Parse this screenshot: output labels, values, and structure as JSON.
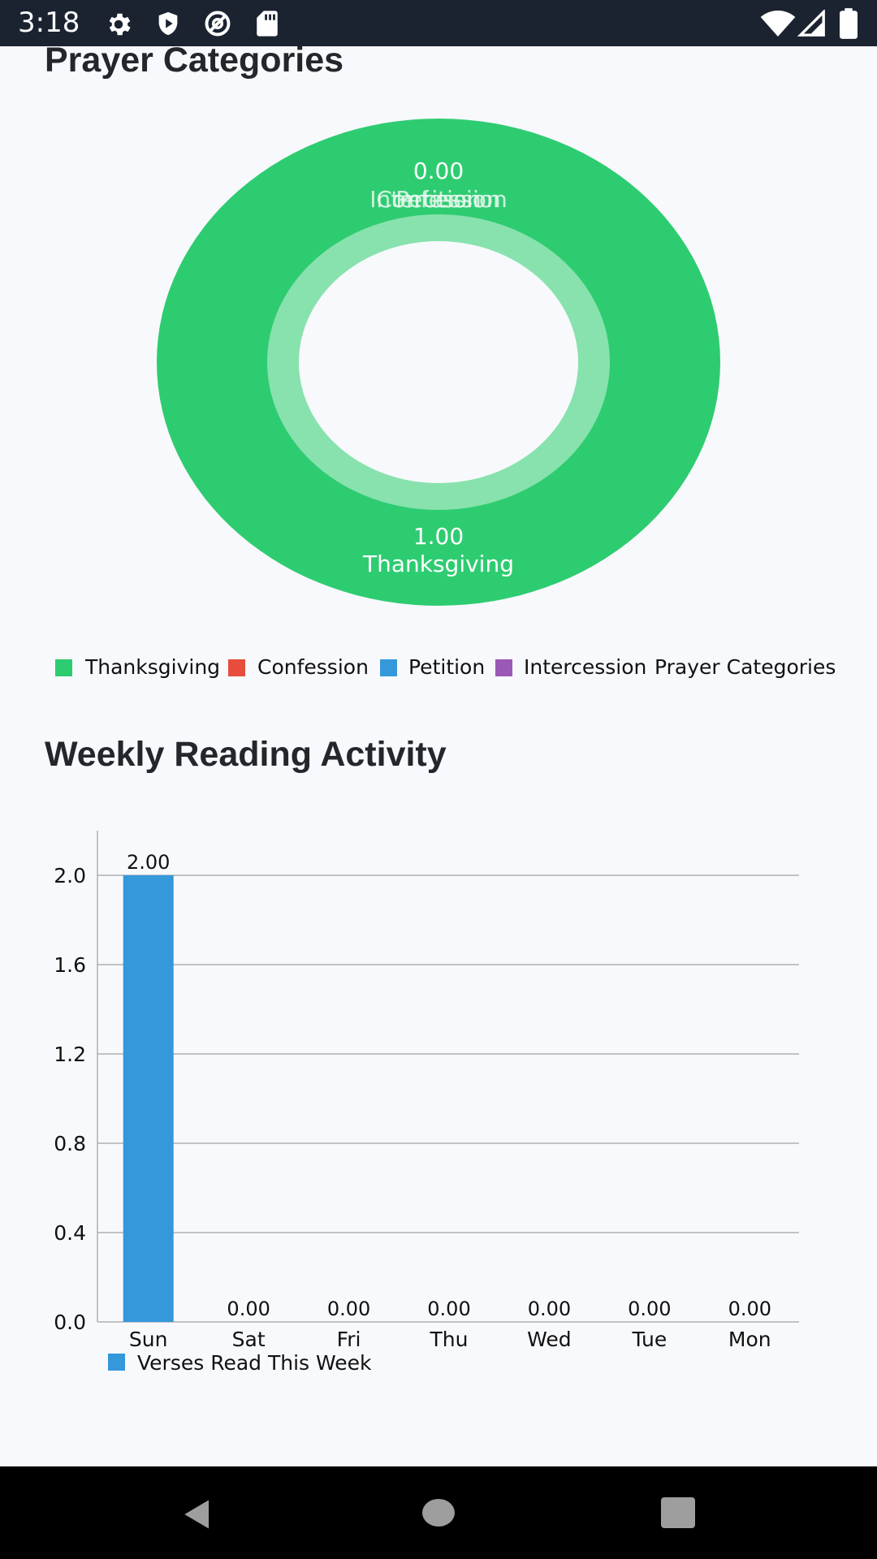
{
  "status_bar": {
    "time": "3:18",
    "left_icons": [
      "gear-icon",
      "shield-play-icon",
      "at-sign-icon",
      "sd-card-icon"
    ],
    "right_icons": [
      "wifi-icon",
      "cell-signal-icon",
      "battery-icon"
    ]
  },
  "prayer_section": {
    "title": "Prayer Categories",
    "donut": {
      "outer_color": "#2ecc71",
      "inner_ring_color": "#88e2ad",
      "top_value": "0.00",
      "top_label_layers": [
        "Intercession",
        "Petition",
        "Confession"
      ],
      "bottom_value": "1.00",
      "bottom_label": "Thanksgiving"
    },
    "legend": [
      {
        "label": "Thanksgiving",
        "color": "#2ecc71"
      },
      {
        "label": "Confession",
        "color": "#e74c3c"
      },
      {
        "label": "Petition",
        "color": "#3498db"
      },
      {
        "label": "Intercession",
        "color": "#9b59b6"
      }
    ],
    "legend_dataset_label": "Prayer Categories"
  },
  "reading_section": {
    "title": "Weekly Reading Activity"
  },
  "chart_data": [
    {
      "type": "pie",
      "title": "Prayer Categories",
      "categories": [
        "Thanksgiving",
        "Confession",
        "Petition",
        "Intercession"
      ],
      "values": [
        1.0,
        0.0,
        0.0,
        0.0
      ],
      "colors": [
        "#2ecc71",
        "#e74c3c",
        "#3498db",
        "#9b59b6"
      ],
      "series": [
        {
          "name": "Prayer Categories",
          "values": [
            1.0,
            0.0,
            0.0,
            0.0
          ]
        }
      ],
      "legend": "bottom"
    },
    {
      "type": "bar",
      "title": "Weekly Reading Activity",
      "categories": [
        "Sun",
        "Sat",
        "Fri",
        "Thu",
        "Wed",
        "Tue",
        "Mon"
      ],
      "series": [
        {
          "name": "Verses Read This Week",
          "values": [
            2.0,
            0.0,
            0.0,
            0.0,
            0.0,
            0.0,
            0.0
          ],
          "color": "#3498db"
        }
      ],
      "value_labels": [
        "2.00",
        "0.00",
        "0.00",
        "0.00",
        "0.00",
        "0.00",
        "0.00"
      ],
      "yticks": [
        "0.0",
        "0.4",
        "0.8",
        "1.2",
        "1.6",
        "2.0"
      ],
      "ylim": [
        0,
        2.2
      ],
      "grid": true,
      "legend": "bottom-left"
    }
  ],
  "nav_bar": {
    "icons": [
      "back-icon",
      "home-icon",
      "recents-icon"
    ]
  }
}
